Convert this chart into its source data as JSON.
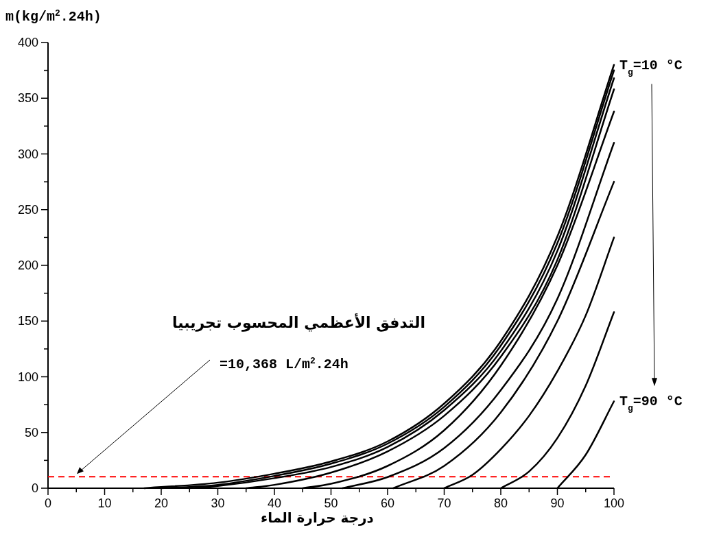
{
  "chart_data": {
    "type": "line",
    "ylabel": "m(kg/m$^{2}$.24h)",
    "xlabel": "درجة حرارة الماء",
    "xlim": [
      0,
      100
    ],
    "ylim": [
      0,
      400
    ],
    "xticks": [
      0,
      {
        "value": 5,
        "label": null
      },
      10,
      {
        "value": 15,
        "label": null
      },
      20,
      {
        "value": 25,
        "label": null
      },
      30,
      {
        "value": 35,
        "label": null
      },
      40,
      {
        "value": 45,
        "label": null
      },
      50,
      {
        "value": 55,
        "label": null
      },
      60,
      {
        "value": 65,
        "label": null
      },
      70,
      {
        "value": 75,
        "label": null
      },
      80,
      {
        "value": 85,
        "label": null
      },
      90,
      {
        "value": 95,
        "label": null
      },
      100
    ],
    "yticks": [
      0,
      {
        "value": 25,
        "label": null
      },
      50,
      {
        "value": 75,
        "label": null
      },
      100,
      {
        "value": 125,
        "label": null
      },
      150,
      {
        "value": 175,
        "label": null
      },
      200,
      {
        "value": 225,
        "label": null
      },
      250,
      {
        "value": 275,
        "label": null
      },
      300,
      {
        "value": 325,
        "label": null
      },
      350,
      {
        "value": 375,
        "label": null
      },
      400
    ],
    "grid": false,
    "marker": "none",
    "line_style": "solid",
    "series": [
      {
        "color": "#000000",
        "x": [
          17,
          30,
          40,
          50,
          60,
          70,
          80,
          90,
          100
        ],
        "values": [
          0,
          5,
          13,
          24,
          42,
          76,
          132,
          226,
          380
        ]
      },
      {
        "color": "#000000",
        "x": [
          20,
          30,
          40,
          50,
          60,
          70,
          80,
          90,
          100
        ],
        "values": [
          0,
          3,
          11,
          22,
          40,
          73,
          128,
          220,
          375
        ]
      },
      {
        "color": "#000000",
        "x": [
          25,
          30,
          40,
          50,
          60,
          70,
          80,
          90,
          100
        ],
        "values": [
          0,
          2,
          9,
          19,
          37,
          70,
          123,
          213,
          368
        ]
      },
      {
        "color": "#000000",
        "x": [
          35,
          40,
          50,
          60,
          70,
          80,
          90,
          100
        ],
        "values": [
          0,
          3,
          14,
          33,
          65,
          118,
          205,
          358
        ]
      },
      {
        "color": "#000000",
        "x": [
          45,
          50,
          60,
          70,
          80,
          90,
          100
        ],
        "values": [
          0,
          4,
          20,
          52,
          110,
          200,
          338
        ]
      },
      {
        "color": "#000000",
        "x": [
          52,
          60,
          70,
          80,
          90,
          100
        ],
        "values": [
          0,
          10,
          36,
          88,
          170,
          310
        ]
      },
      {
        "color": "#000000",
        "x": [
          61,
          70,
          80,
          90,
          100
        ],
        "values": [
          0,
          20,
          68,
          150,
          275
        ]
      },
      {
        "color": "#000000",
        "x": [
          70,
          75,
          80,
          85,
          90,
          95,
          100
        ],
        "values": [
          0,
          12,
          35,
          65,
          105,
          155,
          225
        ]
      },
      {
        "color": "#000000",
        "x": [
          80,
          85,
          90,
          95,
          100
        ],
        "values": [
          0,
          15,
          45,
          92,
          158
        ]
      },
      {
        "color": "#000000",
        "x": [
          90,
          95,
          100
        ],
        "values": [
          0,
          30,
          78
        ]
      }
    ],
    "ref_lines": [
      {
        "axis": "y",
        "value": 10.368,
        "color": "#ff0000",
        "line_style": "dashed"
      }
    ],
    "annotations": [
      {
        "text": "T$_{g}$=10 °C",
        "x": 100,
        "y": 380
      },
      {
        "text": "T$_{g}$=90 °C",
        "x": 100,
        "y": 78
      },
      "التدفق الأعظمي المحسوب تجريبيا",
      "=10,368 L/m$^{2}$.24h"
    ]
  }
}
